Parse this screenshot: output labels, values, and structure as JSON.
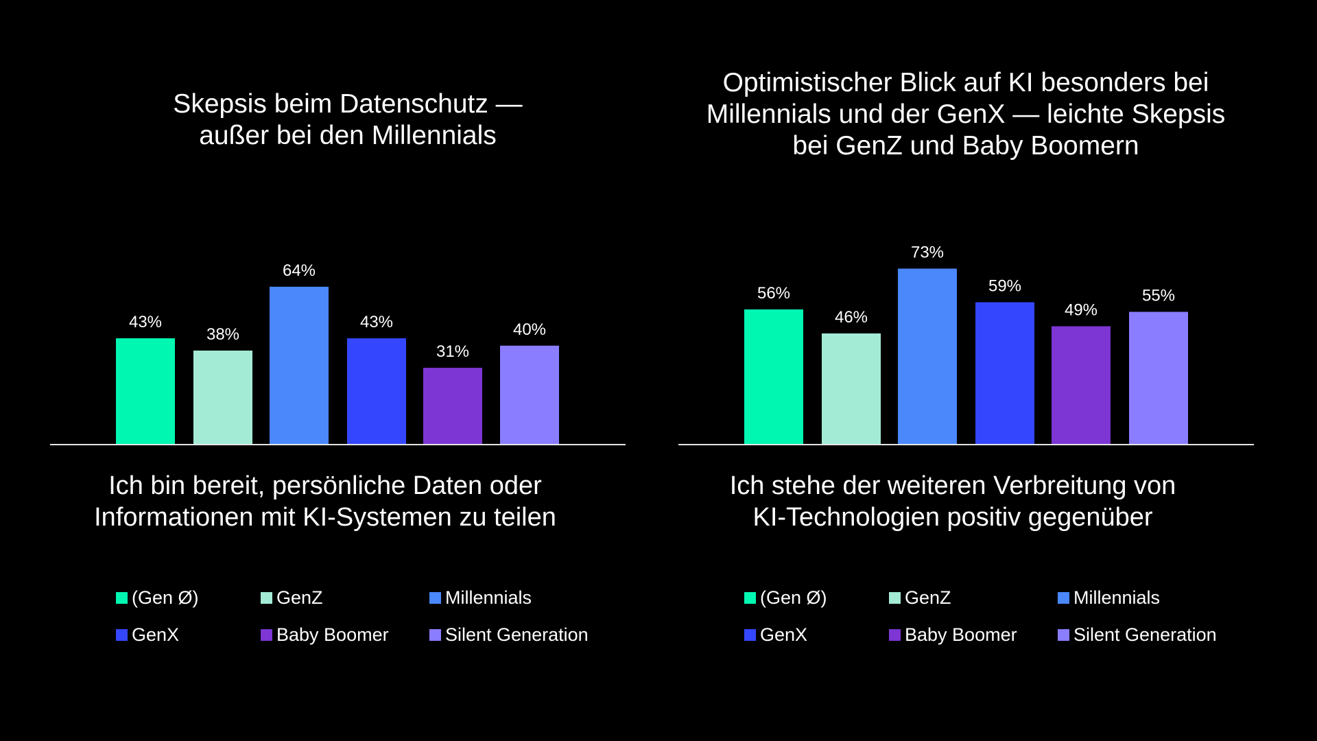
{
  "chart_data": [
    {
      "type": "bar",
      "title": [
        "Skepsis beim Datenschutz —",
        "außer bei den Millennials"
      ],
      "xlabel": [
        "Ich bin bereit, persönliche Daten oder",
        "Informationen mit KI-Systemen zu teilen"
      ],
      "categories": [
        "(Gen Ø)",
        "GenZ",
        "Millennials",
        "GenX",
        "Baby Boomer",
        "Silent Generation"
      ],
      "values": [
        43,
        38,
        64,
        43,
        31,
        40
      ],
      "labels": [
        "43%",
        "38%",
        "64%",
        "43%",
        "31%",
        "40%"
      ],
      "unit": "%",
      "grid": false,
      "legend": "bottom"
    },
    {
      "type": "bar",
      "title": [
        "Optimistischer Blick auf KI besonders bei",
        "Millennials und der GenX — leichte Skepsis",
        "bei GenZ und Baby Boomern"
      ],
      "xlabel": [
        "Ich stehe der weiteren Verbreitung von",
        "KI-Technologien positiv gegenüber"
      ],
      "categories": [
        "(Gen Ø)",
        "GenZ",
        "Millennials",
        "GenX",
        "Baby Boomer",
        "Silent Generation"
      ],
      "values": [
        56,
        46,
        73,
        59,
        49,
        55
      ],
      "labels": [
        "56%",
        "46%",
        "73%",
        "59%",
        "49%",
        "55%"
      ],
      "unit": "%",
      "grid": false,
      "legend": "bottom"
    }
  ],
  "colors": [
    "#00f7b2",
    "#a4ebd6",
    "#4a88fb",
    "#3447ff",
    "#7d35d4",
    "#8a7dff"
  ],
  "background": "#000000"
}
